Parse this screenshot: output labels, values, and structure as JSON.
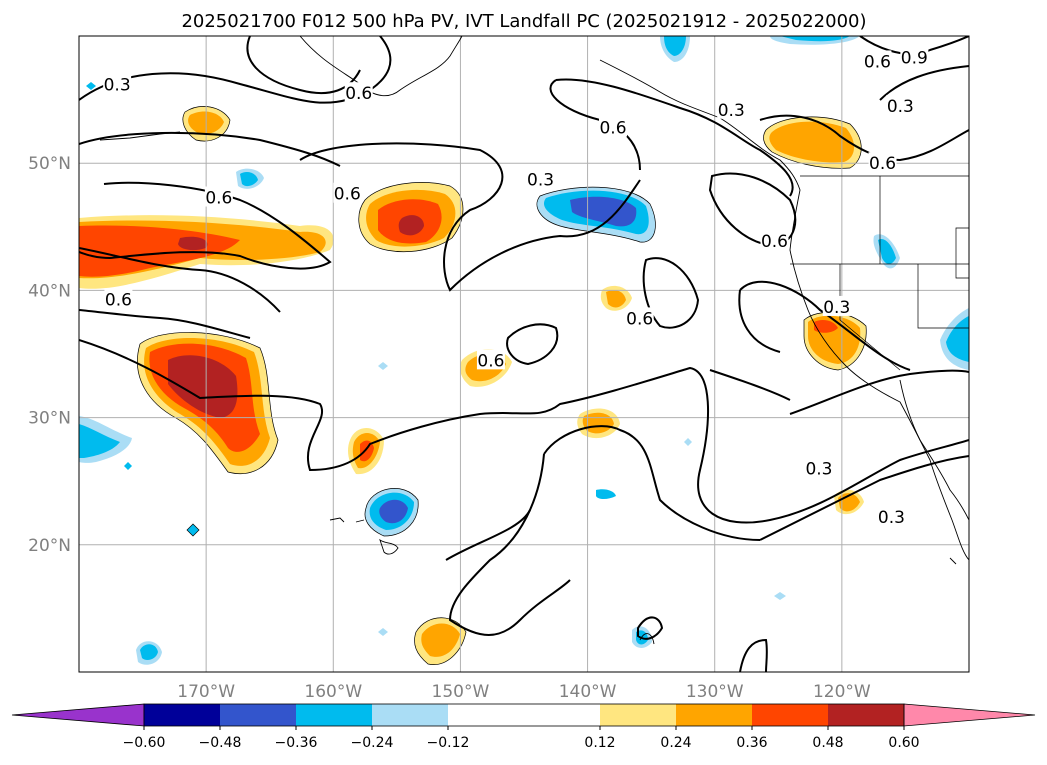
{
  "chart_data": {
    "type": "heatmap",
    "title": "2025021700 F012 500 hPa PV, IVT Landfall PC (2025021912 - 2025022000)",
    "map_extent": {
      "lon": [
        -180,
        -110
      ],
      "lat": [
        10,
        60
      ]
    },
    "lat_ticks": [
      {
        "value": 20,
        "label": "20°N"
      },
      {
        "value": 30,
        "label": "30°N"
      },
      {
        "value": 40,
        "label": "40°N"
      },
      {
        "value": 50,
        "label": "50°N"
      }
    ],
    "lon_ticks": [
      {
        "value": -170,
        "label": "170°W"
      },
      {
        "value": -160,
        "label": "160°W"
      },
      {
        "value": -150,
        "label": "150°W"
      },
      {
        "value": -140,
        "label": "140°W"
      },
      {
        "value": -130,
        "label": "130°W"
      },
      {
        "value": -120,
        "label": "120°W"
      }
    ],
    "grid": true,
    "colorbar": {
      "levels": [
        -0.72,
        -0.6,
        -0.48,
        -0.36,
        -0.24,
        -0.12,
        0.12,
        0.24,
        0.36,
        0.48,
        0.6,
        0.72
      ],
      "colors": [
        "#9933cc",
        "#000099",
        "#3355cc",
        "#00bbee",
        "#aaddf5",
        "#ffffff",
        "#ffe680",
        "#ffa500",
        "#ff4500",
        "#b22222",
        "#ff88aa"
      ],
      "tick_labels": [
        "−0.60",
        "−0.48",
        "−0.36",
        "−0.24",
        "−0.12",
        "0.12",
        "0.24",
        "0.36",
        "0.48",
        "0.60"
      ],
      "extend": "both"
    },
    "contour_labels": [
      {
        "text": "0.3",
        "lon": -177,
        "lat": 56.2
      },
      {
        "text": "0.6",
        "lon": -158,
        "lat": 55.5
      },
      {
        "text": "0.6",
        "lon": -138,
        "lat": 52.8
      },
      {
        "text": "0.3",
        "lon": -128.7,
        "lat": 54.2
      },
      {
        "text": "0.6",
        "lon": -117.2,
        "lat": 58.0
      },
      {
        "text": "0.9",
        "lon": -114.3,
        "lat": 58.3
      },
      {
        "text": "0.3",
        "lon": -115.4,
        "lat": 54.5
      },
      {
        "text": "0.6",
        "lon": -116.8,
        "lat": 50.0
      },
      {
        "text": "0.6",
        "lon": -169.0,
        "lat": 47.3
      },
      {
        "text": "0.6",
        "lon": -158.9,
        "lat": 47.6
      },
      {
        "text": "0.3",
        "lon": -143.7,
        "lat": 48.7
      },
      {
        "text": "0.6",
        "lon": -125.3,
        "lat": 43.9
      },
      {
        "text": "0.6",
        "lon": -176.9,
        "lat": 39.3
      },
      {
        "text": "0.3",
        "lon": -120.4,
        "lat": 38.7
      },
      {
        "text": "0.6",
        "lon": -135.9,
        "lat": 37.8
      },
      {
        "text": "0.6",
        "lon": -147.6,
        "lat": 34.5
      },
      {
        "text": "0.3",
        "lon": -121.8,
        "lat": 26.0
      },
      {
        "text": "0.3",
        "lon": -116.1,
        "lat": 22.2
      }
    ]
  }
}
